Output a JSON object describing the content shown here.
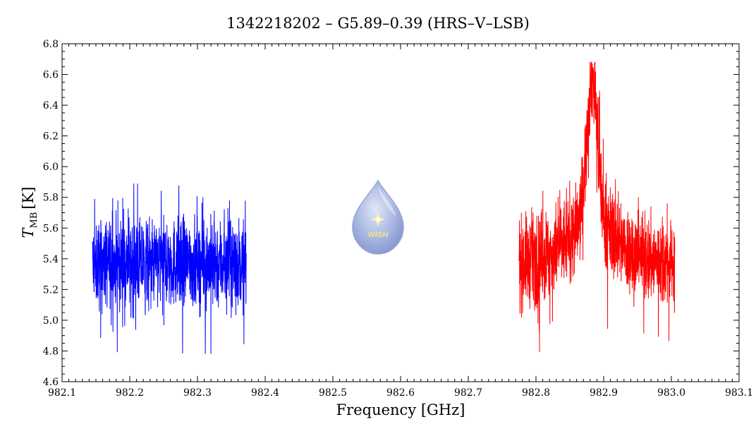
{
  "chart_data": {
    "type": "line",
    "title": "1342218202 – G5.89–0.39 (HRS–V–LSB)",
    "xlabel": "Frequency [GHz]",
    "ylabel_main": "T",
    "ylabel_sub": "MB",
    "ylabel_unit": "[K]",
    "xlim": [
      982.1,
      983.1
    ],
    "ylim": [
      4.6,
      6.8
    ],
    "x_ticks": [
      "982.1",
      "982.2",
      "982.3",
      "982.4",
      "982.5",
      "982.6",
      "982.7",
      "982.8",
      "982.9",
      "983.0",
      "983.1"
    ],
    "y_ticks": [
      "4.6",
      "4.8",
      "5.0",
      "5.2",
      "5.4",
      "5.6",
      "5.8",
      "6.0",
      "6.2",
      "6.4",
      "6.6",
      "6.8"
    ],
    "grid": false,
    "series": [
      {
        "color": "#0000ff",
        "x_range": [
          982.145,
          982.372
        ],
        "baseline": 5.37,
        "min": 4.78,
        "max": 5.89
      },
      {
        "color": "#ff0000",
        "x_range": [
          982.775,
          983.005
        ],
        "baseline": 5.38,
        "min": 4.77,
        "max": 6.68,
        "peak_x": 982.883
      }
    ]
  },
  "logo": {
    "text": "WISH"
  }
}
